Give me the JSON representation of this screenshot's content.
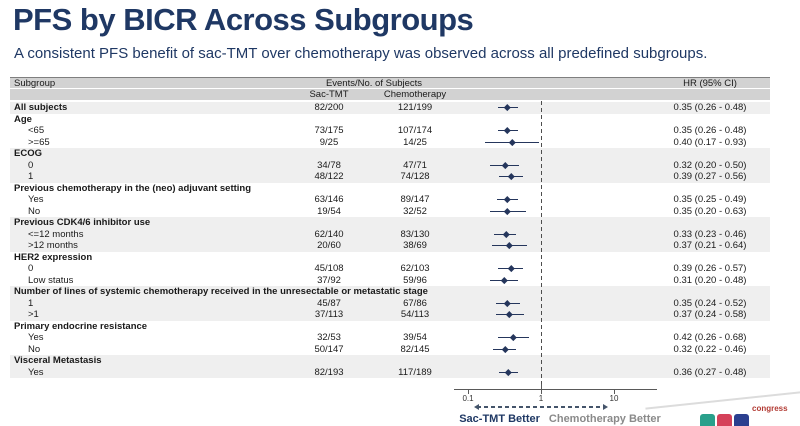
{
  "header": {
    "title": "PFS by BICR Across Subgroups",
    "subtitle": "A consistent PFS benefit of sac-TMT over chemotherapy was observed across all predefined subgroups."
  },
  "colors": {
    "navy": "#1f3864",
    "ci_marker": "#25365c",
    "section_shade": "#efefef",
    "header_band": "#d2d2d2",
    "logo_teal": "#29a08b",
    "logo_red": "#d5415a",
    "logo_blue": "#2b3f8f"
  },
  "chart_data": {
    "type": "scatter",
    "subtype": "forest-plot",
    "title": "PFS by BICR Across Subgroups",
    "columns": {
      "subgroup": "Subgroup",
      "events": "Events/No. of Subjects",
      "arm1": "Sac-TMT",
      "arm2": "Chemotherapy",
      "hr": "HR (95% CI)"
    },
    "axis": {
      "scale": "log10",
      "ticks": [
        0.1,
        1,
        10
      ],
      "tick_labels": [
        "0.1",
        "1",
        "10"
      ],
      "reference_line": 1,
      "left_label": "Sac-TMT Better",
      "right_label": "Chemotherapy Better"
    },
    "sections": [
      {
        "shaded": true,
        "header": null,
        "rows": [
          {
            "label": "All subjects",
            "bold": true,
            "sac": "82/200",
            "chemo": "121/199",
            "hr": 0.35,
            "lo": 0.26,
            "hi": 0.48,
            "hr_text": "0.35 (0.26 - 0.48)"
          }
        ]
      },
      {
        "shaded": false,
        "header": "Age",
        "rows": [
          {
            "label": "<65",
            "sac": "73/175",
            "chemo": "107/174",
            "hr": 0.35,
            "lo": 0.26,
            "hi": 0.48,
            "hr_text": "0.35 (0.26 - 0.48)"
          },
          {
            "label": ">=65",
            "sac": "9/25",
            "chemo": "14/25",
            "hr": 0.4,
            "lo": 0.17,
            "hi": 0.93,
            "hr_text": "0.40 (0.17 - 0.93)"
          }
        ]
      },
      {
        "shaded": true,
        "header": "ECOG",
        "rows": [
          {
            "label": "0",
            "sac": "34/78",
            "chemo": "47/71",
            "hr": 0.32,
            "lo": 0.2,
            "hi": 0.5,
            "hr_text": "0.32 (0.20 - 0.50)"
          },
          {
            "label": "1",
            "sac": "48/122",
            "chemo": "74/128",
            "hr": 0.39,
            "lo": 0.27,
            "hi": 0.56,
            "hr_text": "0.39 (0.27 - 0.56)"
          }
        ]
      },
      {
        "shaded": false,
        "header": "Previous chemotherapy in the (neo) adjuvant setting",
        "rows": [
          {
            "label": "Yes",
            "sac": "63/146",
            "chemo": "89/147",
            "hr": 0.35,
            "lo": 0.25,
            "hi": 0.49,
            "hr_text": "0.35 (0.25 - 0.49)"
          },
          {
            "label": "No",
            "sac": "19/54",
            "chemo": "32/52",
            "hr": 0.35,
            "lo": 0.2,
            "hi": 0.63,
            "hr_text": "0.35 (0.20 - 0.63)"
          }
        ]
      },
      {
        "shaded": true,
        "header": "Previous CDK4/6 inhibitor use",
        "rows": [
          {
            "label": "<=12 months",
            "sac": "62/140",
            "chemo": "83/130",
            "hr": 0.33,
            "lo": 0.23,
            "hi": 0.46,
            "hr_text": "0.33 (0.23 - 0.46)"
          },
          {
            "label": ">12 months",
            "sac": "20/60",
            "chemo": "38/69",
            "hr": 0.37,
            "lo": 0.21,
            "hi": 0.64,
            "hr_text": "0.37 (0.21 - 0.64)"
          }
        ]
      },
      {
        "shaded": false,
        "header": "HER2 expression",
        "rows": [
          {
            "label": "0",
            "sac": "45/108",
            "chemo": "62/103",
            "hr": 0.39,
            "lo": 0.26,
            "hi": 0.57,
            "hr_text": "0.39 (0.26 - 0.57)"
          },
          {
            "label": "Low status",
            "sac": "37/92",
            "chemo": "59/96",
            "hr": 0.31,
            "lo": 0.2,
            "hi": 0.48,
            "hr_text": "0.31 (0.20 - 0.48)"
          }
        ]
      },
      {
        "shaded": true,
        "header": "Number of lines of systemic chemotherapy received in the unresectable or metastatic stage",
        "rows": [
          {
            "label": "1",
            "sac": "45/87",
            "chemo": "67/86",
            "hr": 0.35,
            "lo": 0.24,
            "hi": 0.52,
            "hr_text": "0.35 (0.24 - 0.52)"
          },
          {
            "label": ">1",
            "sac": "37/113",
            "chemo": "54/113",
            "hr": 0.37,
            "lo": 0.24,
            "hi": 0.58,
            "hr_text": "0.37 (0.24 - 0.58)"
          }
        ]
      },
      {
        "shaded": false,
        "header": "Primary endocrine resistance",
        "rows": [
          {
            "label": "Yes",
            "sac": "32/53",
            "chemo": "39/54",
            "hr": 0.42,
            "lo": 0.26,
            "hi": 0.68,
            "hr_text": "0.42 (0.26 - 0.68)"
          },
          {
            "label": "No",
            "sac": "50/147",
            "chemo": "82/145",
            "hr": 0.32,
            "lo": 0.22,
            "hi": 0.46,
            "hr_text": "0.32 (0.22 - 0.46)"
          }
        ]
      },
      {
        "shaded": true,
        "header": "Visceral Metastasis",
        "rows": [
          {
            "label": "Yes",
            "sac": "82/193",
            "chemo": "117/189",
            "hr": 0.36,
            "lo": 0.27,
            "hi": 0.48,
            "hr_text": "0.36 (0.27 - 0.48)"
          }
        ]
      }
    ]
  },
  "footer_logo": {
    "text": "congress"
  }
}
